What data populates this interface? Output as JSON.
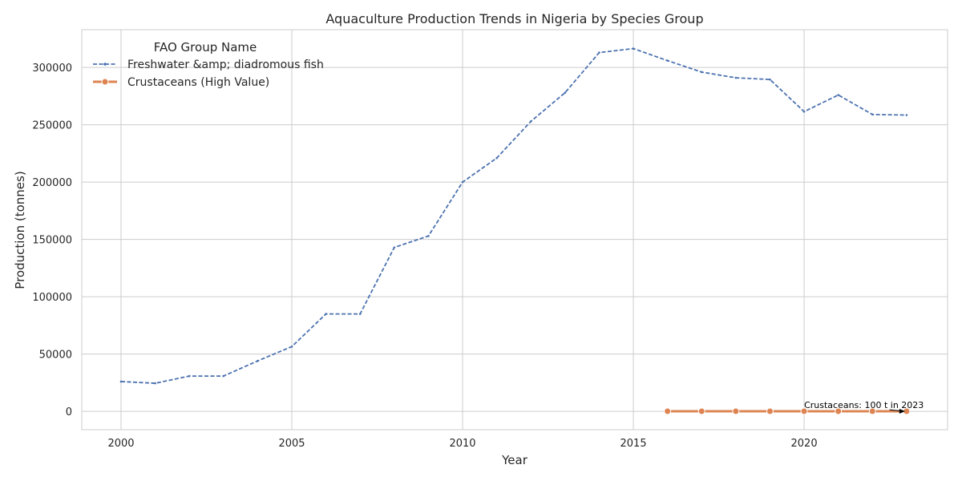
{
  "chart_data": {
    "type": "line",
    "title": "Aquaculture Production Trends in Nigeria by Species Group",
    "xlabel": "Year",
    "ylabel": "Production (tonnes)",
    "xlim": [
      1998.85,
      2024.2
    ],
    "ylim": [
      -16000,
      333000
    ],
    "xticks": [
      2000,
      2005,
      2010,
      2015,
      2020
    ],
    "yticks": [
      0,
      50000,
      100000,
      150000,
      200000,
      250000,
      300000
    ],
    "grid": true,
    "legend": {
      "title": "FAO Group Name",
      "placement": "top-left"
    },
    "series": [
      {
        "name": "Freshwater &amp; diadromous fish",
        "color": "#4c72b0",
        "style": "dashed",
        "marker": "point",
        "x": [
          2000,
          2001,
          2002,
          2003,
          2004,
          2005,
          2006,
          2007,
          2008,
          2009,
          2010,
          2011,
          2012,
          2013,
          2014,
          2015,
          2016,
          2017,
          2018,
          2019,
          2020,
          2021,
          2022,
          2023
        ],
        "y": [
          26000,
          24500,
          30800,
          30800,
          44000,
          56500,
          85000,
          85000,
          143000,
          153000,
          200000,
          221000,
          253000,
          278000,
          313000,
          316500,
          306000,
          296000,
          291000,
          289500,
          261500,
          276000,
          259000,
          258500
        ]
      },
      {
        "name": "Crustaceans (High Value)",
        "color": "#dd8452",
        "style": "solid",
        "marker": "circle",
        "x": [
          2016,
          2017,
          2018,
          2019,
          2020,
          2021,
          2022,
          2023
        ],
        "y": [
          100,
          100,
          100,
          100,
          100,
          100,
          100,
          100
        ]
      }
    ],
    "annotations": [
      {
        "text": "Crustaceans: 100 t in 2023",
        "x": 2023,
        "y": 100
      }
    ]
  }
}
